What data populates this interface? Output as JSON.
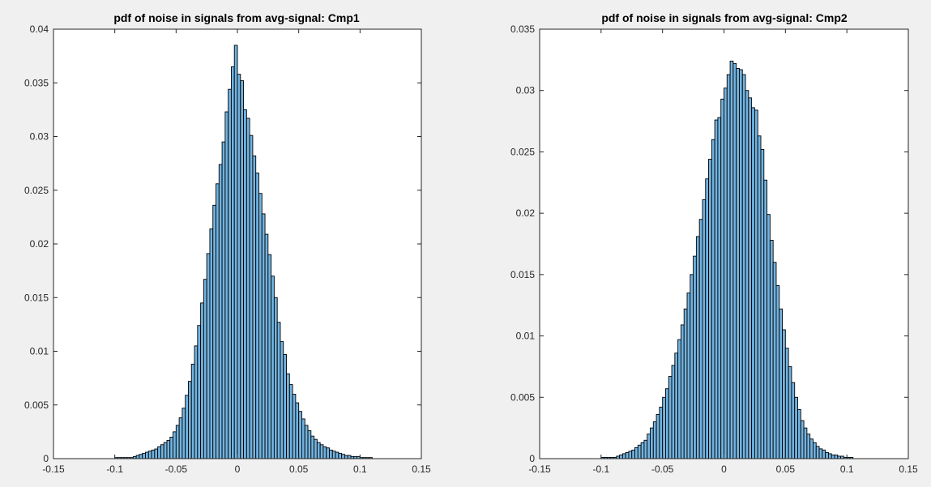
{
  "colors": {
    "background": "#f0f0f0",
    "axes_background": "#ffffff",
    "bar_fill": "#72b3e0",
    "bar_edge": "#000000",
    "axis_color": "#262626"
  },
  "chart_data": [
    {
      "type": "histogram",
      "title": "pdf of noise in signals from avg-signal: Cmp1",
      "xlabel": "",
      "ylabel": "",
      "xlim": [
        -0.15,
        0.15
      ],
      "ylim": [
        0,
        0.04
      ],
      "xticks": [
        -0.15,
        -0.1,
        -0.05,
        0,
        0.05,
        0.1,
        0.15
      ],
      "xtick_labels": [
        "-0.15",
        "-0.1",
        "-0.05",
        "0",
        "0.05",
        "0.1",
        "0.15"
      ],
      "yticks": [
        0,
        0.005,
        0.01,
        0.015,
        0.02,
        0.025,
        0.03,
        0.035,
        0.04
      ],
      "ytick_labels": [
        "0",
        "0.005",
        "0.01",
        "0.015",
        "0.02",
        "0.025",
        "0.03",
        "0.035",
        "0.04"
      ],
      "grid": false,
      "bin_width": 0.0025,
      "bin_start": -0.1,
      "values": [
        0.0001,
        0.0001,
        0.0001,
        0.0001,
        0.0001,
        0.0001,
        0.0002,
        0.0003,
        0.0004,
        0.0005,
        0.0006,
        0.0007,
        0.0008,
        0.0009,
        0.0011,
        0.0013,
        0.0015,
        0.0017,
        0.002,
        0.0025,
        0.0031,
        0.0038,
        0.0047,
        0.0059,
        0.0072,
        0.0088,
        0.0105,
        0.0124,
        0.0145,
        0.0167,
        0.0191,
        0.0214,
        0.0236,
        0.0256,
        0.0274,
        0.0295,
        0.0323,
        0.0344,
        0.0365,
        0.0385,
        0.0358,
        0.0352,
        0.0325,
        0.0317,
        0.0301,
        0.0282,
        0.0266,
        0.0247,
        0.0228,
        0.0209,
        0.019,
        0.017,
        0.015,
        0.0127,
        0.0109,
        0.0097,
        0.0079,
        0.0069,
        0.006,
        0.0052,
        0.0044,
        0.0037,
        0.0031,
        0.0026,
        0.0021,
        0.0018,
        0.0015,
        0.0013,
        0.0011,
        0.001,
        0.0008,
        0.0007,
        0.0006,
        0.0005,
        0.0004,
        0.0003,
        0.0003,
        0.0002,
        0.0002,
        0.0002,
        0.0001,
        0.0001,
        0.0001,
        0.0001
      ]
    },
    {
      "type": "histogram",
      "title": "pdf of noise in signals from avg-signal: Cmp2",
      "xlabel": "",
      "ylabel": "",
      "xlim": [
        -0.15,
        0.15
      ],
      "ylim": [
        0,
        0.035
      ],
      "xticks": [
        -0.15,
        -0.1,
        -0.05,
        0,
        0.05,
        0.1,
        0.15
      ],
      "xtick_labels": [
        "-0.15",
        "-0.1",
        "-0.05",
        "0",
        "0.05",
        "0.1",
        "0.15"
      ],
      "yticks": [
        0,
        0.005,
        0.01,
        0.015,
        0.02,
        0.025,
        0.03,
        0.035
      ],
      "ytick_labels": [
        "0",
        "0.005",
        "0.01",
        "0.015",
        "0.02",
        "0.025",
        "0.03",
        "0.035"
      ],
      "grid": false,
      "bin_width": 0.0025,
      "bin_start": -0.1,
      "values": [
        0.0001,
        0.0001,
        0.0001,
        0.0001,
        0.0001,
        0.0002,
        0.0003,
        0.0004,
        0.0005,
        0.0006,
        0.0007,
        0.0009,
        0.0011,
        0.0013,
        0.0015,
        0.002,
        0.0025,
        0.003,
        0.0036,
        0.0042,
        0.005,
        0.0057,
        0.0067,
        0.0076,
        0.0086,
        0.0097,
        0.0109,
        0.0122,
        0.0135,
        0.015,
        0.0165,
        0.0181,
        0.0195,
        0.0211,
        0.0228,
        0.0244,
        0.026,
        0.0276,
        0.0278,
        0.0293,
        0.0302,
        0.0313,
        0.0324,
        0.0322,
        0.0318,
        0.0317,
        0.0313,
        0.03,
        0.0294,
        0.0286,
        0.0284,
        0.0263,
        0.0252,
        0.0227,
        0.0199,
        0.0178,
        0.016,
        0.0141,
        0.0122,
        0.0105,
        0.009,
        0.0075,
        0.0062,
        0.005,
        0.004,
        0.0031,
        0.0025,
        0.002,
        0.0016,
        0.0013,
        0.001,
        0.0008,
        0.0007,
        0.0005,
        0.0004,
        0.0003,
        0.0003,
        0.0002,
        0.0002,
        0.0001,
        0.0001,
        0.0001
      ]
    }
  ]
}
